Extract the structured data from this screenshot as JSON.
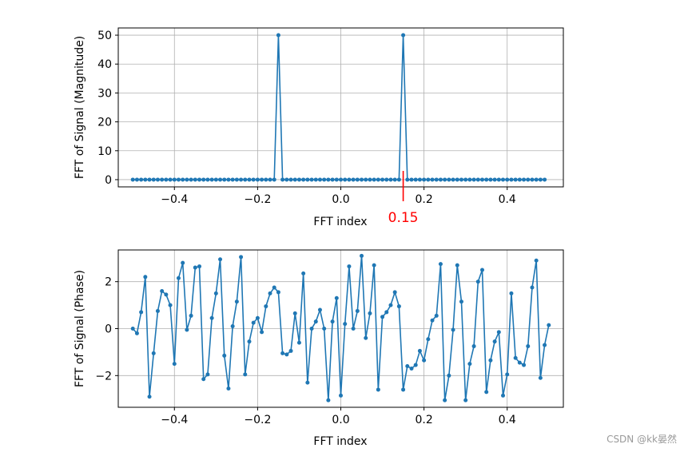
{
  "watermark": "CSDN @kk晏然",
  "annotation": {
    "text": "0.15",
    "x": 0.15,
    "color": "#ff0000"
  },
  "line_color": "#1f77b4",
  "chart_data": [
    {
      "type": "line",
      "xlabel": "FFT index",
      "ylabel": "FFT of Signal (Magnitude)",
      "xlim": [
        -0.535,
        0.535
      ],
      "ylim": [
        -2.5,
        52.5
      ],
      "xticks": [
        -0.4,
        -0.2,
        0.0,
        0.2,
        0.4
      ],
      "xtick_labels": [
        "−0.4",
        "−0.2",
        "0.0",
        "0.2",
        "0.4"
      ],
      "yticks": [
        0,
        10,
        20,
        30,
        40,
        50
      ],
      "ytick_labels": [
        "0",
        "10",
        "20",
        "30",
        "40",
        "50"
      ],
      "grid": true,
      "x_start": -0.5,
      "x_step": 0.01,
      "values": [
        0,
        0,
        0,
        0,
        0,
        0,
        0,
        0,
        0,
        0,
        0,
        0,
        0,
        0,
        0,
        0,
        0,
        0,
        0,
        0,
        0,
        0,
        0,
        0,
        0,
        0,
        0,
        0,
        0,
        0,
        0,
        0,
        0,
        0,
        0,
        50,
        0,
        0,
        0,
        0,
        0,
        0,
        0,
        0,
        0,
        0,
        0,
        0,
        0,
        0,
        0,
        0,
        0,
        0,
        0,
        0,
        0,
        0,
        0,
        0,
        0,
        0,
        0,
        0,
        0,
        50,
        0,
        0,
        0,
        0,
        0,
        0,
        0,
        0,
        0,
        0,
        0,
        0,
        0,
        0,
        0,
        0,
        0,
        0,
        0,
        0,
        0,
        0,
        0,
        0,
        0,
        0,
        0,
        0,
        0,
        0,
        0,
        0,
        0,
        0
      ]
    },
    {
      "type": "line",
      "xlabel": "FFT index",
      "ylabel": "FFT of Signal (Phase)",
      "xlim": [
        -0.535,
        0.535
      ],
      "ylim": [
        -3.35,
        3.35
      ],
      "xticks": [
        -0.4,
        -0.2,
        0.0,
        0.2,
        0.4
      ],
      "xtick_labels": [
        "−0.4",
        "−0.2",
        "0.0",
        "0.2",
        "0.4"
      ],
      "yticks": [
        -2,
        0,
        2
      ],
      "ytick_labels": [
        "−2",
        "0",
        "2"
      ],
      "grid": true,
      "x_start": -0.5,
      "x_step": 0.01,
      "values": [
        0.0,
        -0.2,
        0.7,
        2.2,
        -2.9,
        -1.05,
        0.75,
        1.6,
        1.45,
        1.0,
        -1.5,
        2.15,
        2.8,
        -0.05,
        0.55,
        2.6,
        2.65,
        -2.15,
        -1.95,
        0.45,
        1.5,
        2.95,
        -1.15,
        -2.55,
        0.1,
        1.15,
        3.05,
        -1.95,
        -0.55,
        0.25,
        0.45,
        -0.15,
        0.95,
        1.5,
        1.75,
        1.55,
        -1.05,
        -1.1,
        -0.95,
        0.65,
        -0.6,
        2.35,
        -2.3,
        0.0,
        0.3,
        0.8,
        0.0,
        -3.05,
        0.3,
        1.3,
        -2.85,
        0.2,
        2.65,
        0.0,
        0.75,
        3.1,
        -0.4,
        0.65,
        2.7,
        -2.6,
        0.5,
        0.7,
        1.0,
        1.55,
        0.95,
        -2.6,
        -1.6,
        -1.7,
        -1.55,
        -0.95,
        -1.35,
        -0.45,
        0.35,
        0.55,
        2.75,
        -3.05,
        -2.0,
        -0.05,
        2.7,
        1.15,
        -3.05,
        -1.5,
        -0.75,
        2.0,
        2.5,
        -2.7,
        -1.35,
        -0.55,
        -0.15,
        -2.85,
        -1.95,
        1.5,
        -1.25,
        -1.45,
        -1.55,
        -0.75,
        1.75,
        2.9,
        -2.1,
        -0.7,
        0.15
      ]
    }
  ]
}
